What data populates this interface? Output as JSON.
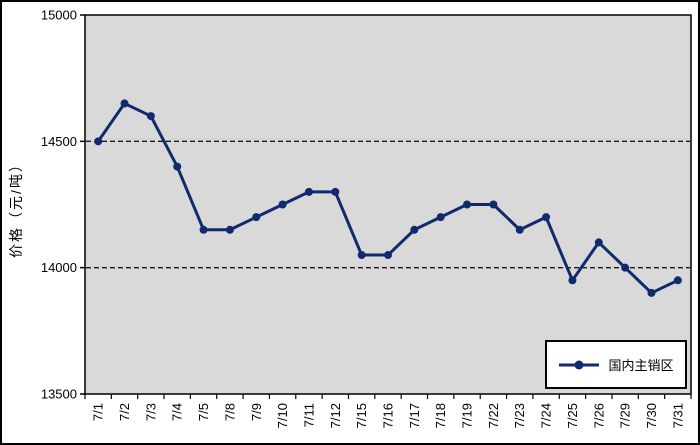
{
  "chart_data": {
    "type": "line",
    "title": "",
    "xlabel": "",
    "ylabel": "价格（元/吨）",
    "categories": [
      "7/1",
      "7/2",
      "7/3",
      "7/4",
      "7/5",
      "7/8",
      "7/9",
      "7/10",
      "7/11",
      "7/12",
      "7/15",
      "7/16",
      "7/17",
      "7/18",
      "7/19",
      "7/22",
      "7/23",
      "7/24",
      "7/25",
      "7/26",
      "7/29",
      "7/30",
      "7/31"
    ],
    "series": [
      {
        "name": "国内主销区",
        "values": [
          14500,
          14650,
          14600,
          14400,
          14150,
          14150,
          14200,
          14250,
          14300,
          14300,
          14050,
          14050,
          14150,
          14200,
          14250,
          14250,
          14150,
          14200,
          13950,
          14100,
          14000,
          13900,
          13950
        ]
      }
    ],
    "ylim": [
      13500,
      15000
    ],
    "ytick_interval": 500,
    "ytick_labels": [
      "13500",
      "14000",
      "14500",
      "15000"
    ],
    "grid": "horizontal-dashed-interior-only",
    "legend": {
      "position": "inside-bottom-right",
      "entries": [
        "国内主销区"
      ]
    },
    "marker": "filled-circle",
    "colors": {
      "line": "#112A6D",
      "plot_bg": "#D9D9D9",
      "grid_line": "#1A1A1A",
      "axis": "#000000",
      "outer_bg": "#FFFFFF",
      "text": "#000000"
    }
  }
}
